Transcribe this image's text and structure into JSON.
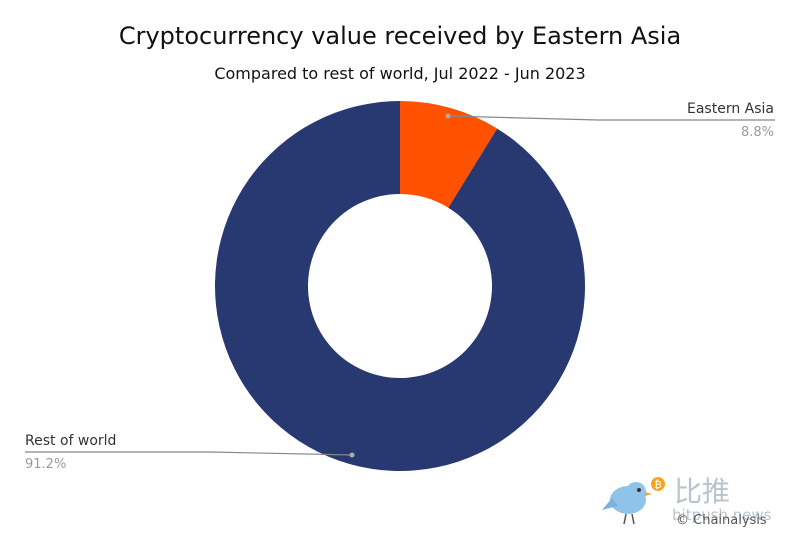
{
  "chart_data": {
    "type": "pie",
    "donut": true,
    "title": "Cryptocurrency value received by Eastern Asia",
    "subtitle": "Compared to rest of world, Jul 2022 - Jun 2023",
    "slices": [
      {
        "label": "Eastern Asia",
        "value": 8.8,
        "value_text": "8.8%",
        "color": "#ff5100"
      },
      {
        "label": "Rest of world",
        "value": 91.2,
        "value_text": "91.2%",
        "color": "#283870"
      }
    ],
    "start_angle": "12 o'clock",
    "direction": "clockwise"
  },
  "watermark": {
    "cn": "比推",
    "en": "bitpush news"
  },
  "copyright": "© Chainalysis"
}
